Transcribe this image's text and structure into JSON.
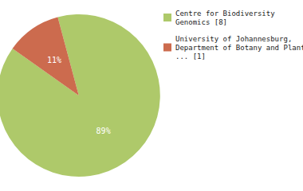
{
  "chart_data": {
    "type": "pie",
    "categories": [
      "Centre for Biodiversity\nGenomics [8]",
      "University of Johannesburg,\nDepartment of Botany and Plant\n... [1]"
    ],
    "values": [
      89,
      11
    ],
    "value_labels": [
      "89%",
      "11%"
    ],
    "colors": [
      "#aec96a",
      "#cc6b4e"
    ],
    "data_labels": true,
    "legend": "upper right"
  }
}
